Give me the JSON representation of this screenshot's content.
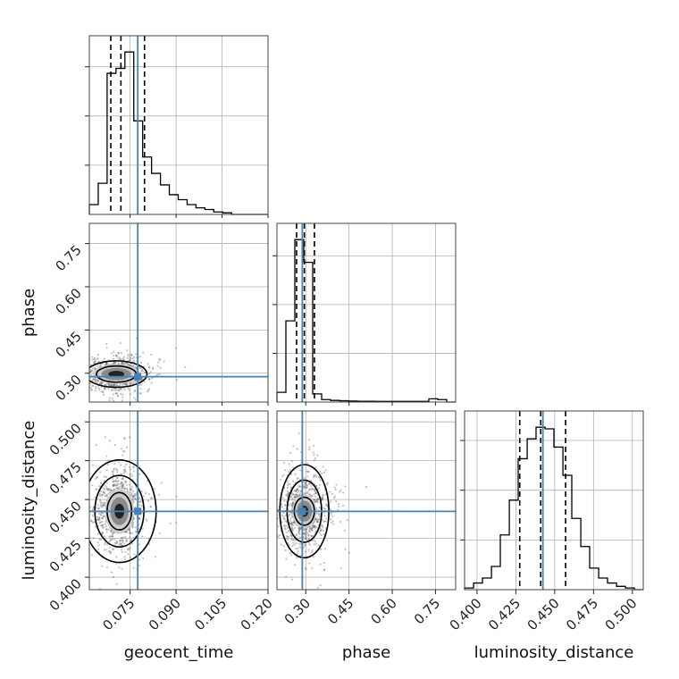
{
  "chart_data": {
    "type": "corner",
    "parameters": [
      "geocent_time",
      "phase",
      "luminosity_distance"
    ],
    "axis_labels": {
      "geocent_time": "geocent_time",
      "phase": "phase",
      "luminosity_distance": "luminosity_distance"
    },
    "ranges": {
      "geocent_time": [
        0.0617,
        0.12
      ],
      "phase": [
        0.2,
        0.82
      ],
      "luminosity_distance": [
        0.392,
        0.507
      ]
    },
    "ticks": {
      "geocent_time": [
        0.075,
        0.09,
        0.105,
        0.12
      ],
      "phase": [
        0.3,
        0.45,
        0.6,
        0.75
      ],
      "luminosity_distance": [
        0.4,
        0.425,
        0.45,
        0.475,
        0.5
      ]
    },
    "tick_labels": {
      "geocent_time": [
        "0.075",
        "0.090",
        "0.105",
        "0.120"
      ],
      "phase": [
        "0.30",
        "0.45",
        "0.60",
        "0.75"
      ],
      "luminosity_distance": [
        "0.400",
        "0.425",
        "0.450",
        "0.475",
        "0.500"
      ]
    },
    "truths": {
      "geocent_time": 0.0775,
      "phase": 0.288,
      "luminosity_distance": 0.4424
    },
    "quantiles": {
      "geocent_time": [
        0.0687,
        0.072,
        0.0797
      ],
      "phase": [
        0.268,
        0.295,
        0.33
      ],
      "luminosity_distance": [
        0.4275,
        0.441,
        0.457
      ]
    },
    "histograms": {
      "geocent_time": {
        "edges": [
          0.0617,
          0.0646,
          0.0675,
          0.0704,
          0.0733,
          0.0762,
          0.0791,
          0.082,
          0.0849,
          0.0878,
          0.0907,
          0.0936,
          0.0965,
          0.0994,
          0.1023,
          0.1052,
          0.1081,
          0.111,
          0.1139,
          0.1168,
          0.1197
        ],
        "counts": [
          0.06,
          0.19,
          0.86,
          0.89,
          0.99,
          0.57,
          0.35,
          0.25,
          0.18,
          0.12,
          0.09,
          0.06,
          0.04,
          0.03,
          0.015,
          0.01,
          0.0,
          0.0,
          0.0,
          0.0
        ]
      },
      "phase": {
        "edges": [
          0.2,
          0.231,
          0.262,
          0.293,
          0.324,
          0.355,
          0.386,
          0.417,
          0.448,
          0.479,
          0.51,
          0.541,
          0.572,
          0.603,
          0.634,
          0.665,
          0.696,
          0.727,
          0.758,
          0.789,
          0.82
        ],
        "counts": [
          0.06,
          0.5,
          1.0,
          0.86,
          0.05,
          0.015,
          0.01,
          0.008,
          0.006,
          0.005,
          0.005,
          0.004,
          0.004,
          0.004,
          0.004,
          0.004,
          0.004,
          0.02,
          0.015,
          0.0
        ]
      },
      "luminosity_distance": {
        "edges": [
          0.392,
          0.3978,
          0.4035,
          0.4093,
          0.415,
          0.4208,
          0.4265,
          0.4323,
          0.438,
          0.4438,
          0.4495,
          0.4553,
          0.461,
          0.4668,
          0.4725,
          0.4783,
          0.484,
          0.4898,
          0.4955,
          0.5013,
          0.507
        ],
        "counts": [
          0.01,
          0.04,
          0.07,
          0.14,
          0.33,
          0.54,
          0.79,
          0.91,
          0.98,
          0.97,
          0.86,
          0.69,
          0.43,
          0.26,
          0.13,
          0.07,
          0.04,
          0.02,
          0.01,
          0.0
        ]
      }
    },
    "pairs": [
      {
        "x": "geocent_time",
        "y": "phase",
        "center": [
          0.0705,
          0.297
        ],
        "spread": [
          0.0038,
          0.021
        ],
        "contours": [
          [
            0.0065,
            0.028
          ],
          [
            0.01,
            0.046
          ]
        ]
      },
      {
        "x": "geocent_time",
        "y": "luminosity_distance",
        "center": [
          0.0715,
          0.4425
        ],
        "spread": [
          0.003,
          0.0095
        ],
        "contours": [
          [
            0.004,
            0.012
          ],
          [
            0.008,
            0.023
          ],
          [
            0.012,
            0.033
          ]
        ]
      },
      {
        "x": "phase",
        "y": "luminosity_distance",
        "center": [
          0.295,
          0.4425
        ],
        "spread": [
          0.03,
          0.009
        ],
        "contours": [
          [
            0.035,
            0.009
          ],
          [
            0.06,
            0.02
          ],
          [
            0.085,
            0.03
          ]
        ]
      }
    ],
    "colors": {
      "truth": "#4682b4",
      "hist": "#000000",
      "grid": "#b0b0b0"
    },
    "grid": true,
    "legend": "none"
  }
}
